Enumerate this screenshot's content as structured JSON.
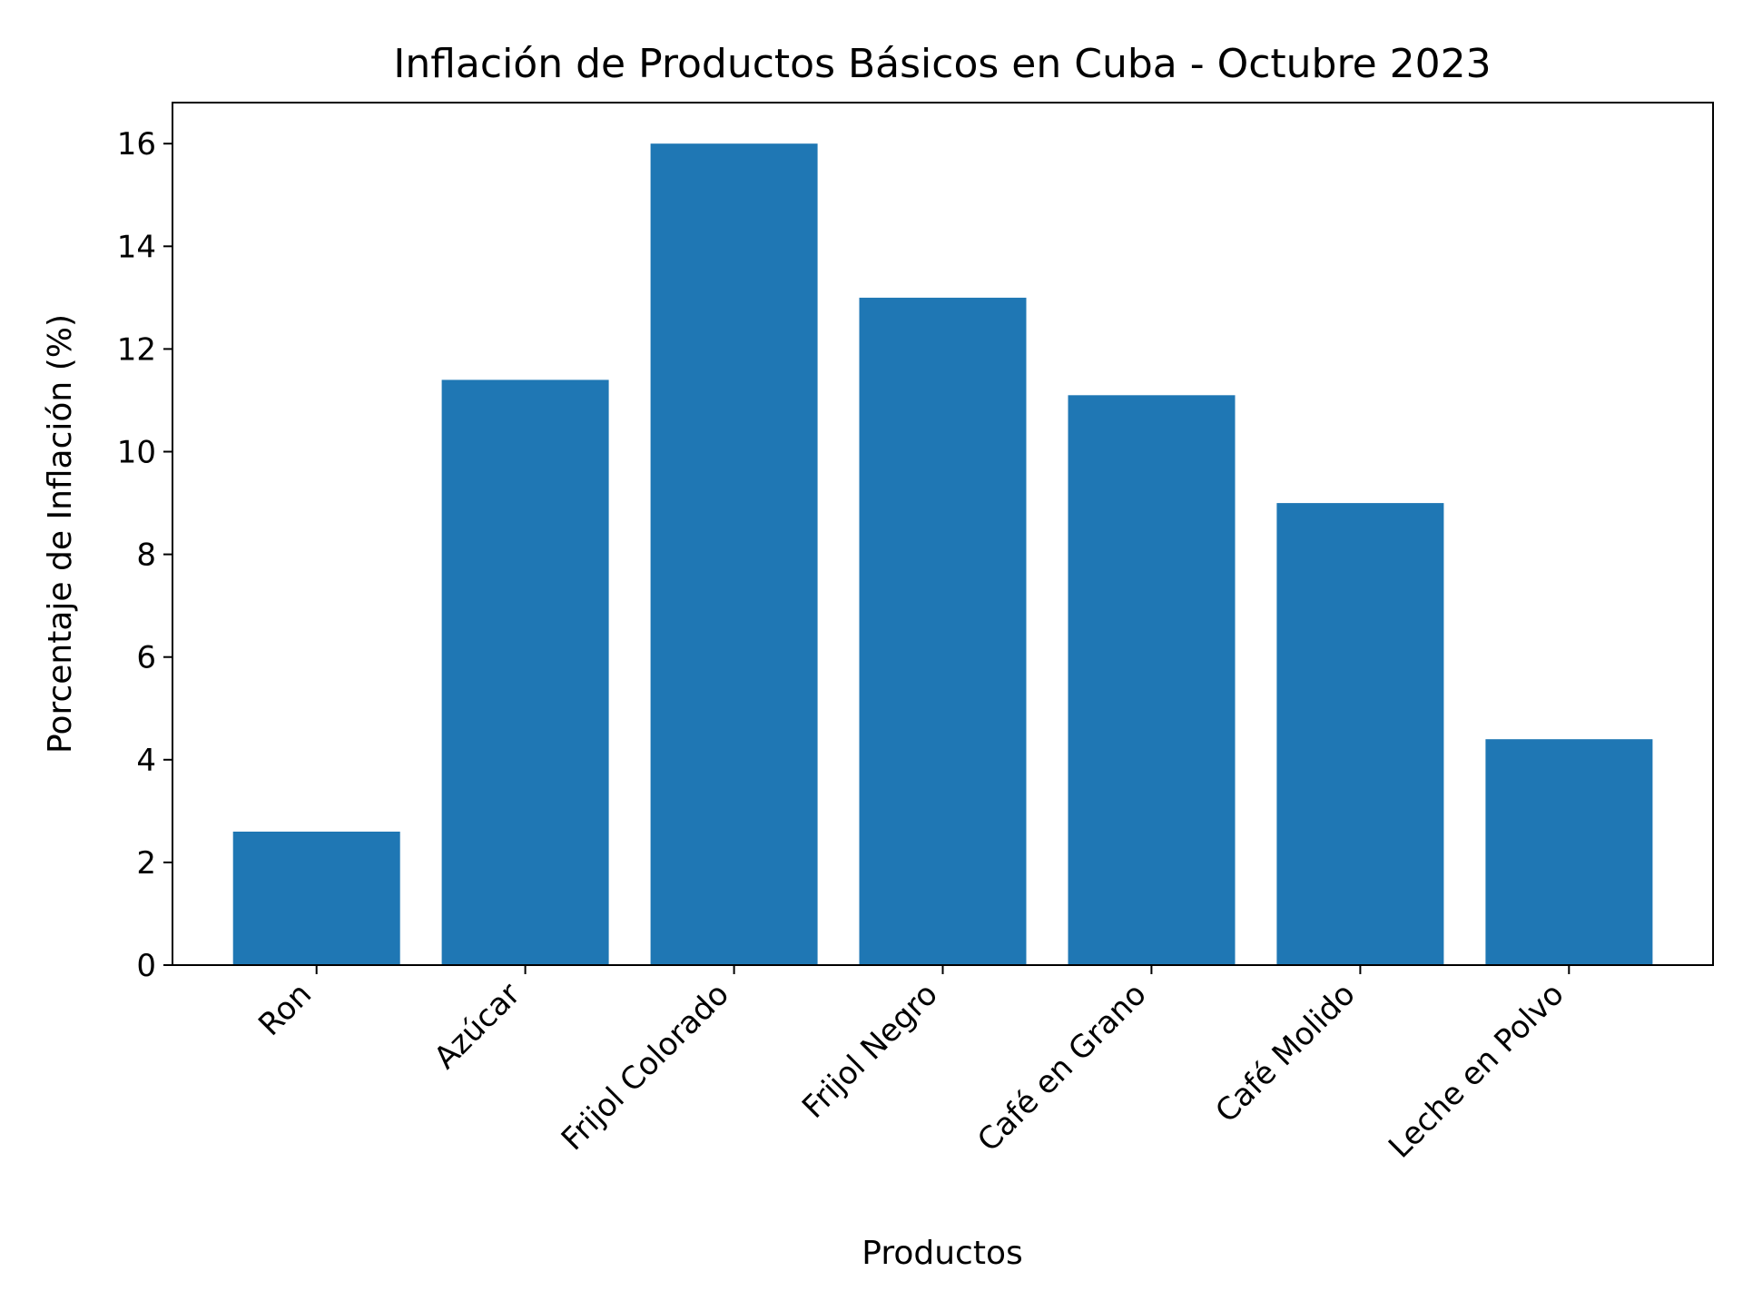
{
  "chart_data": {
    "type": "bar",
    "title": "Inflación de Productos Básicos en Cuba - Octubre 2023",
    "xlabel": "Productos",
    "ylabel": "Porcentaje de Inflación (%)",
    "categories": [
      "Ron",
      "Azúcar",
      "Frijol Colorado",
      "Frijol Negro",
      "Café en Grano",
      "Café Molido",
      "Leche en Polvo"
    ],
    "values": [
      2.6,
      11.4,
      16.0,
      13.0,
      11.1,
      9.0,
      4.4
    ],
    "ylim": [
      0,
      16.8
    ],
    "yticks": [
      0,
      2,
      4,
      6,
      8,
      10,
      12,
      14,
      16
    ],
    "grid": false,
    "legend": "none",
    "bar_color": "#1f77b4"
  }
}
